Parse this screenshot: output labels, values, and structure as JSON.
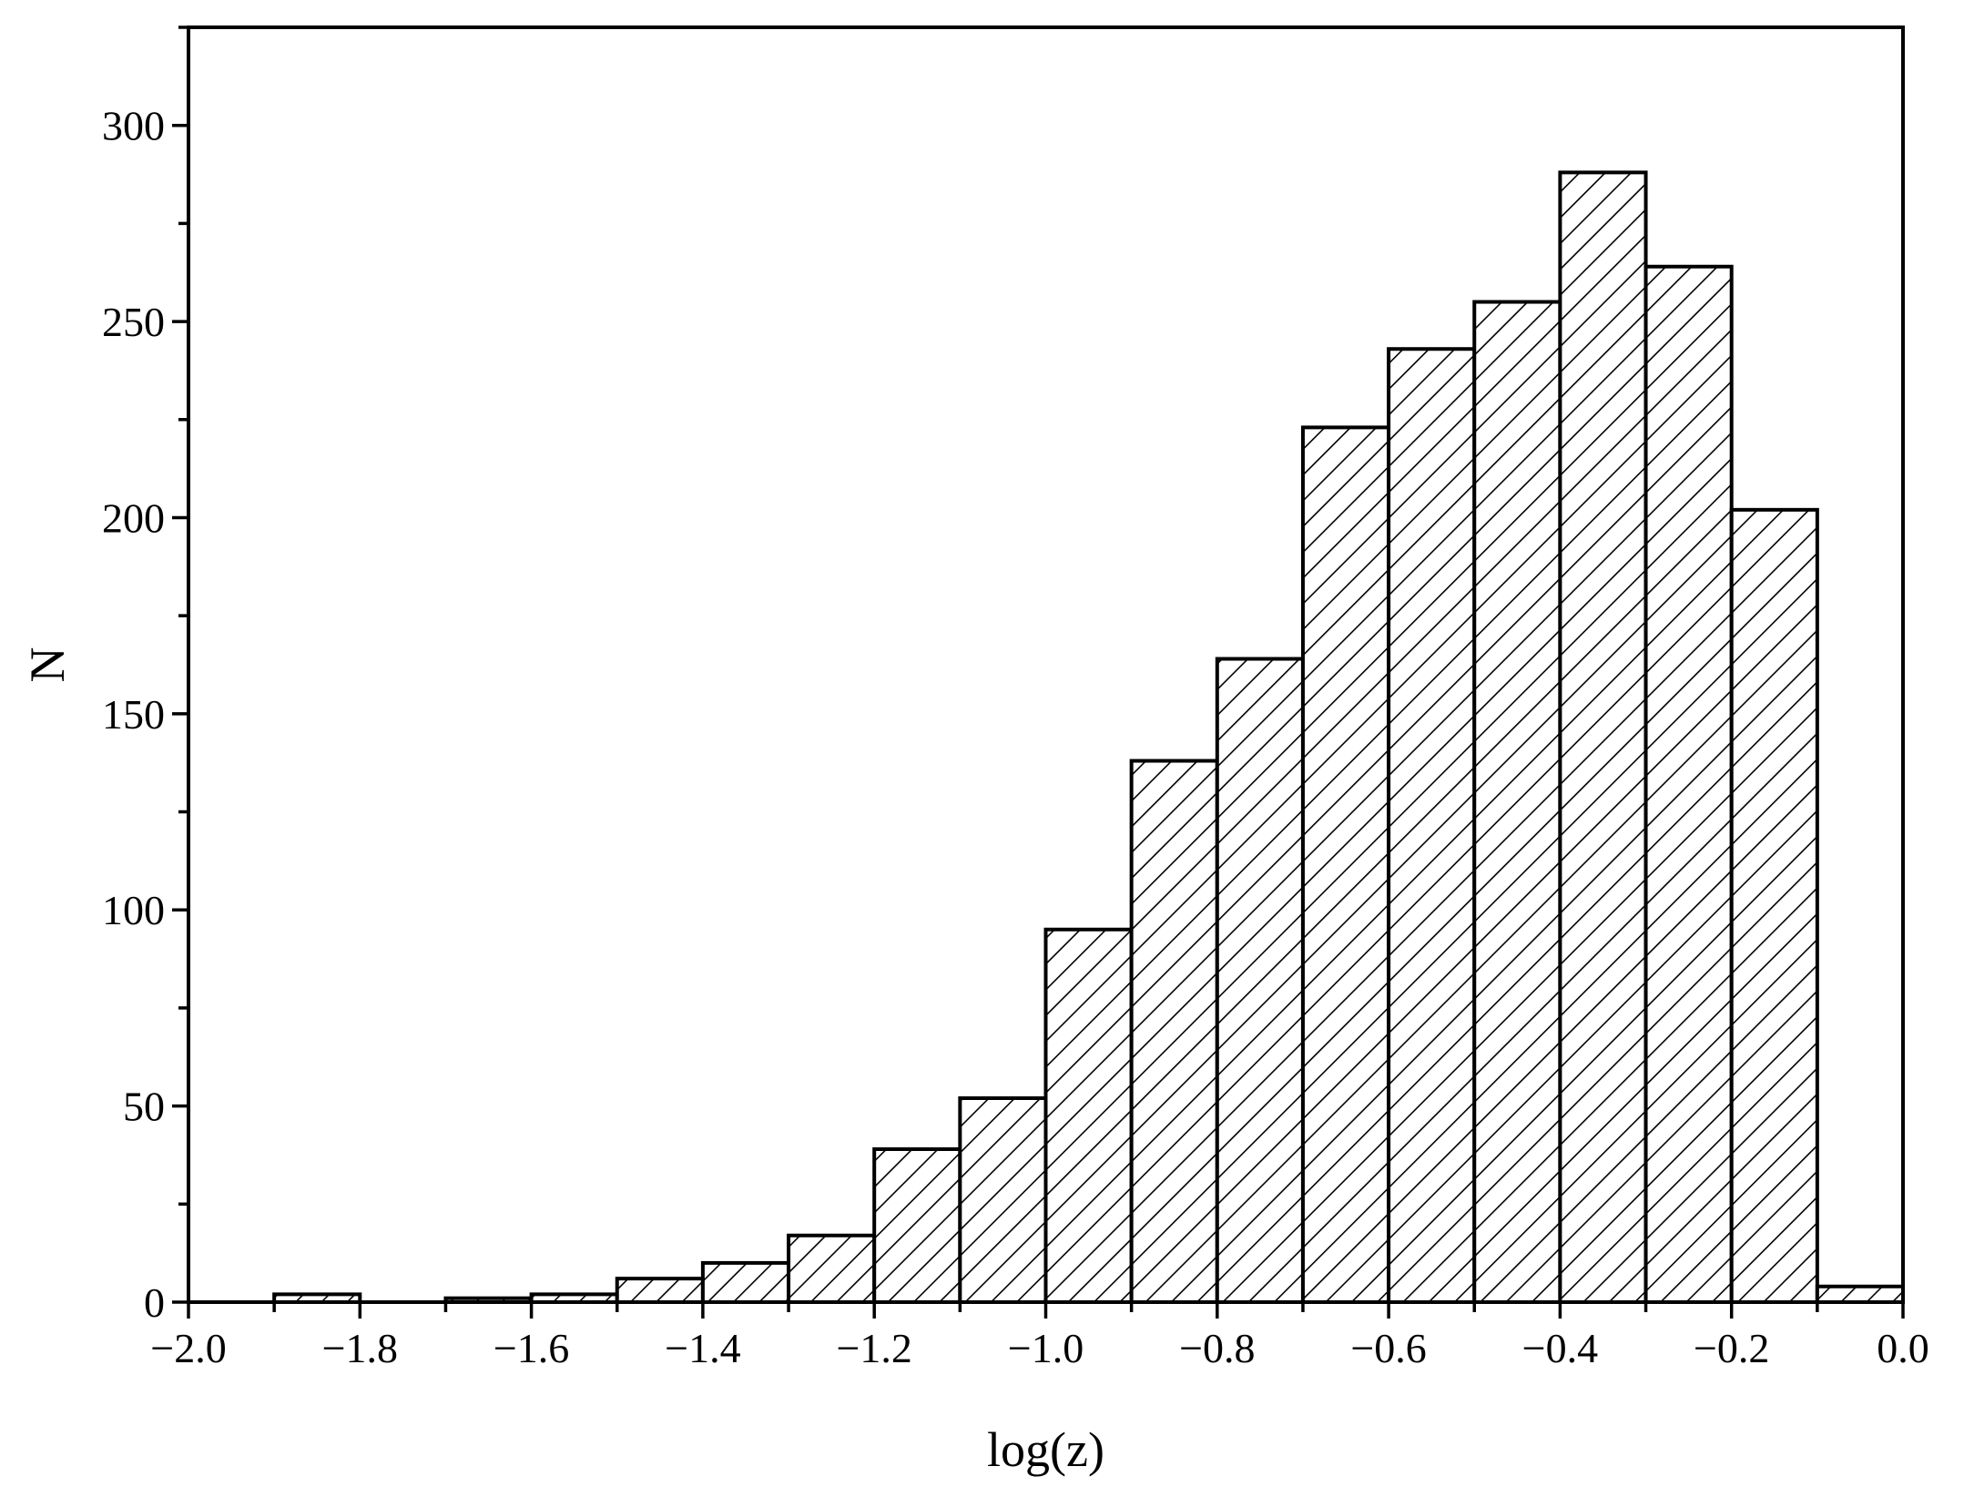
{
  "chart_data": {
    "type": "bar",
    "title": "",
    "xlabel": "log(z)",
    "ylabel": "N",
    "xlim": [
      -2.0,
      0.0
    ],
    "ylim": [
      0,
      325
    ],
    "grid": false,
    "legend": "none",
    "bin_width": 0.1,
    "bars": [
      {
        "x0": -1.9,
        "x1": -1.8,
        "value": 2
      },
      {
        "x0": -1.7,
        "x1": -1.6,
        "value": 1
      },
      {
        "x0": -1.6,
        "x1": -1.5,
        "value": 2
      },
      {
        "x0": -1.5,
        "x1": -1.4,
        "value": 6
      },
      {
        "x0": -1.4,
        "x1": -1.3,
        "value": 10
      },
      {
        "x0": -1.3,
        "x1": -1.2,
        "value": 17
      },
      {
        "x0": -1.2,
        "x1": -1.1,
        "value": 39
      },
      {
        "x0": -1.1,
        "x1": -1.0,
        "value": 52
      },
      {
        "x0": -1.0,
        "x1": -0.9,
        "value": 95
      },
      {
        "x0": -0.9,
        "x1": -0.8,
        "value": 138
      },
      {
        "x0": -0.8,
        "x1": -0.7,
        "value": 164
      },
      {
        "x0": -0.7,
        "x1": -0.6,
        "value": 223
      },
      {
        "x0": -0.6,
        "x1": -0.5,
        "value": 243
      },
      {
        "x0": -0.5,
        "x1": -0.4,
        "value": 255
      },
      {
        "x0": -0.4,
        "x1": -0.3,
        "value": 288
      },
      {
        "x0": -0.3,
        "x1": -0.2,
        "value": 264
      },
      {
        "x0": -0.2,
        "x1": -0.1,
        "value": 202
      },
      {
        "x0": -0.1,
        "x1": 0.0,
        "value": 4
      }
    ],
    "x_ticks": [
      -2.0,
      -1.8,
      -1.6,
      -1.4,
      -1.2,
      -1.0,
      -0.8,
      -0.6,
      -0.4,
      -0.2,
      0.0
    ],
    "x_tick_labels": [
      "−2.0",
      "−1.8",
      "−1.6",
      "−1.4",
      "−1.2",
      "−1.0",
      "−0.8",
      "−0.6",
      "−0.4",
      "−0.2",
      "0.0"
    ],
    "y_ticks": [
      0,
      50,
      100,
      150,
      200,
      250,
      300
    ],
    "y_tick_labels": [
      "0",
      "50",
      "100",
      "150",
      "200",
      "250",
      "300"
    ],
    "bar_fill": "hatched-diagonal",
    "bar_color": "#000000"
  }
}
